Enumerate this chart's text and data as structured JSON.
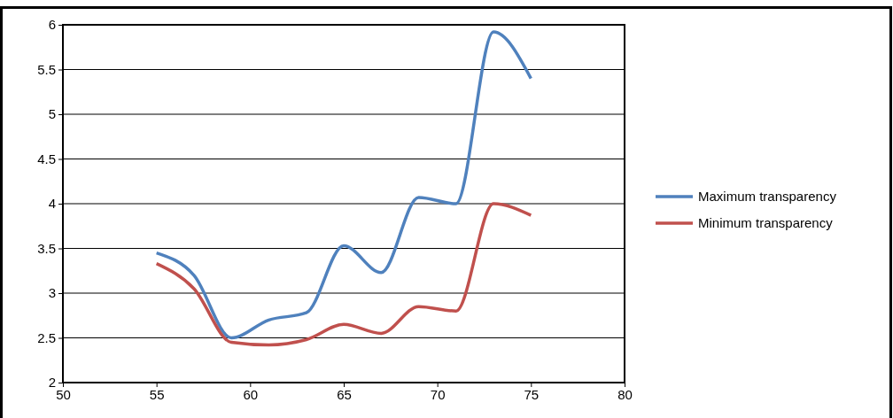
{
  "chart_data": {
    "type": "line",
    "x": [
      55,
      57,
      59,
      61,
      63,
      65,
      67,
      69,
      71,
      73,
      75
    ],
    "series": [
      {
        "name": "Maximum transparency",
        "color": "#4f81bd",
        "values": [
          3.45,
          3.2,
          2.5,
          2.7,
          2.78,
          3.53,
          3.23,
          4.07,
          4.0,
          5.92,
          5.4
        ]
      },
      {
        "name": "Minimum transparency",
        "color": "#c0504d",
        "values": [
          3.33,
          3.05,
          2.45,
          2.42,
          2.48,
          2.65,
          2.55,
          2.85,
          2.8,
          4.0,
          3.87
        ]
      }
    ],
    "xlim": [
      50,
      80
    ],
    "xticks": [
      50,
      55,
      60,
      65,
      70,
      75,
      80
    ],
    "ylim": [
      2,
      6
    ],
    "yticks": [
      2,
      2.5,
      3,
      3.5,
      4,
      4.5,
      5,
      5.5,
      6
    ],
    "grid": "y",
    "legend": "right",
    "marker": "none",
    "line_style": "solid"
  }
}
